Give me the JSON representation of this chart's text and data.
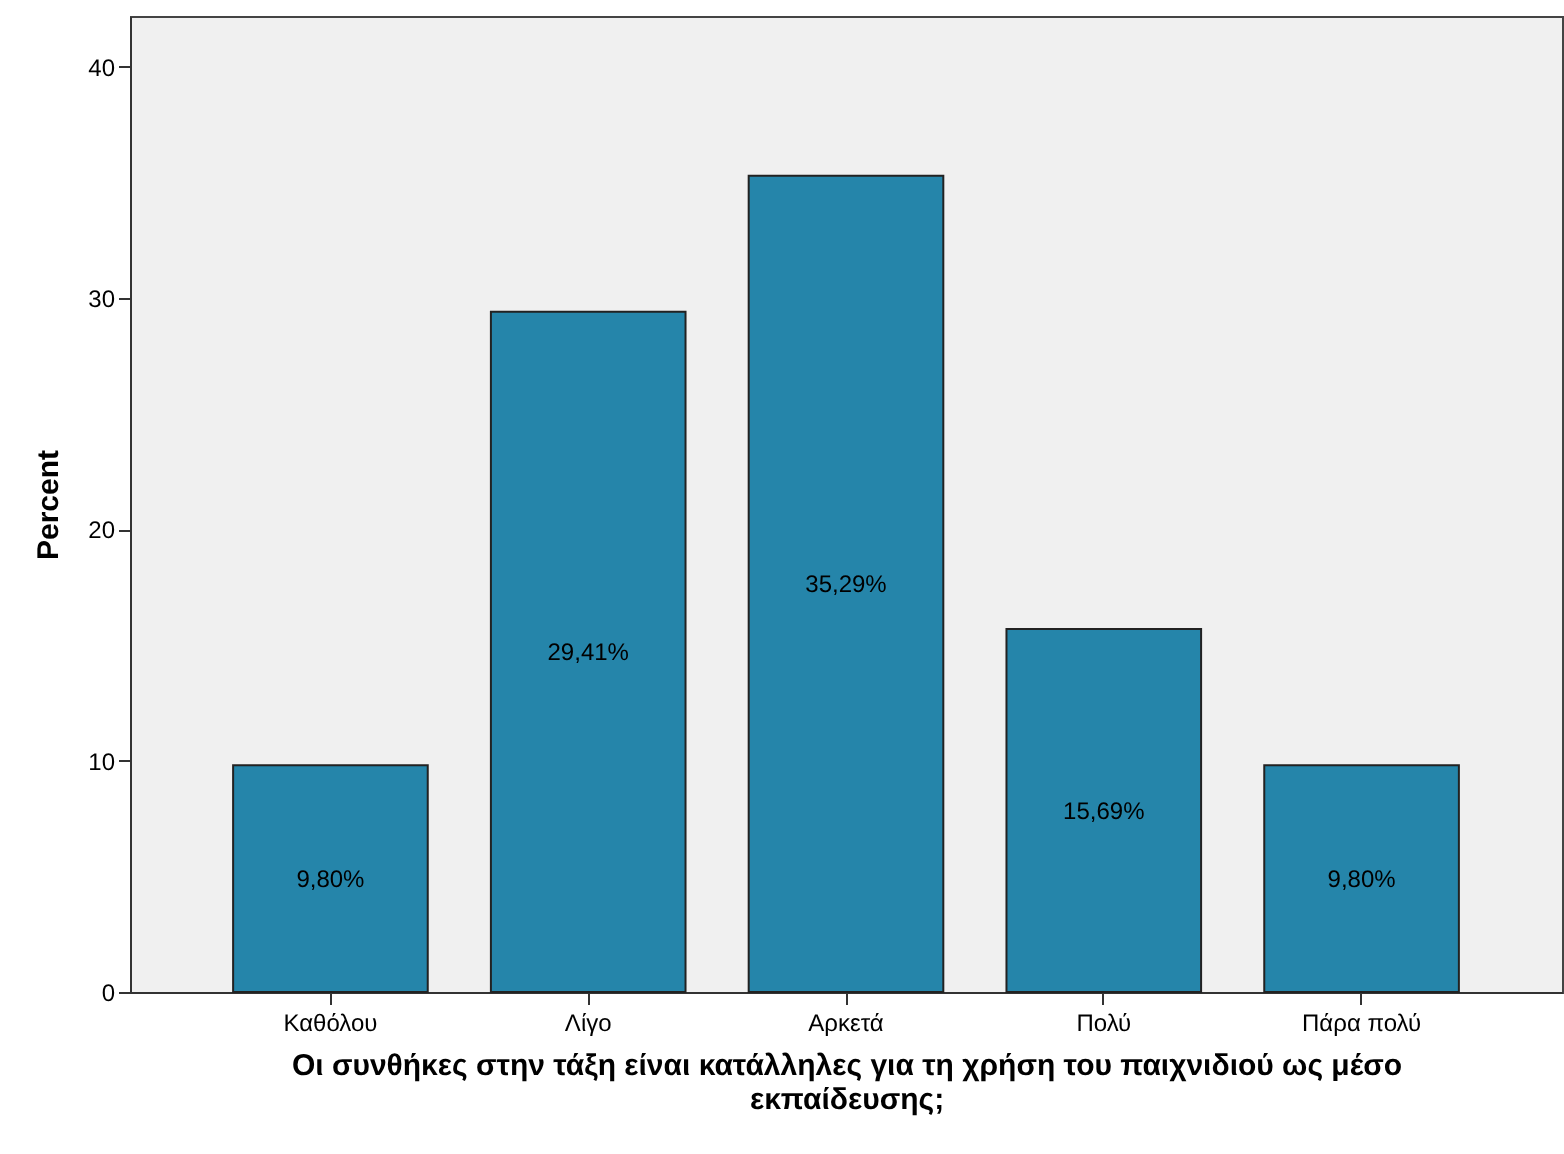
{
  "chart_data": {
    "type": "bar",
    "xlabel": "Οι συνθήκες στην τάξη είναι κατάλληλες για τη χρήση του παιχνιδιού ως μέσο εκπαίδευσης;",
    "ylabel": "Percent",
    "categories": [
      "Καθόλου",
      "Λίγο",
      "Αρκετά",
      "Πολύ",
      "Πάρα πολύ"
    ],
    "values": [
      9.8,
      29.41,
      35.29,
      15.69,
      9.8
    ],
    "value_labels": [
      "9,80%",
      "29,41%",
      "35,29%",
      "15,69%",
      "9,80%"
    ],
    "color": "#2585aa",
    "ylim": [
      0,
      42.2
    ],
    "yticks": [
      0,
      10,
      20,
      30,
      40
    ],
    "grid": false
  }
}
